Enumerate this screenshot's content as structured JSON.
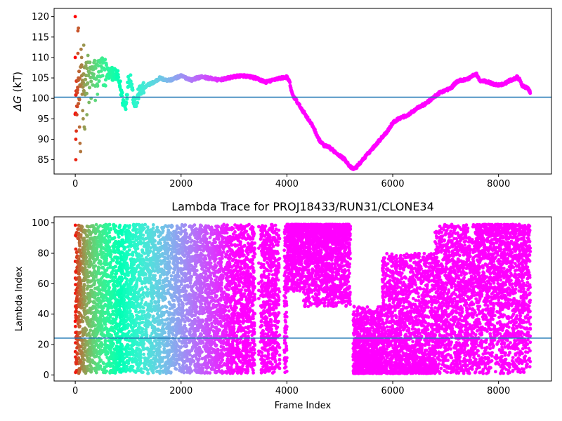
{
  "chart_data": [
    {
      "type": "scatter",
      "title": "",
      "xlabel": "",
      "ylabel_symbol": "ΔG",
      "ylabel_unit": "(kT)",
      "xlim": [
        -400,
        9000
      ],
      "ylim": [
        81.5,
        122
      ],
      "xticks": [
        0,
        2000,
        4000,
        6000,
        8000
      ],
      "yticks": [
        85,
        90,
        95,
        100,
        105,
        110,
        115,
        120
      ],
      "hline": {
        "y": 100.3,
        "color": "#1f77b4"
      },
      "colormap": "rainbow",
      "x_range": [
        0,
        8600
      ],
      "trace": [
        [
          0,
          100
        ],
        [
          100,
          104
        ],
        [
          200,
          105
        ],
        [
          300,
          105.5
        ],
        [
          400,
          106
        ],
        [
          500,
          106.5
        ],
        [
          600,
          106.3
        ],
        [
          700,
          106
        ],
        [
          800,
          105.5
        ],
        [
          850,
          103
        ],
        [
          900,
          99.5
        ],
        [
          950,
          98
        ],
        [
          1000,
          104
        ],
        [
          1050,
          105
        ],
        [
          1100,
          100
        ],
        [
          1150,
          98.5
        ],
        [
          1200,
          101.5
        ],
        [
          1300,
          102.5
        ],
        [
          1400,
          103.5
        ],
        [
          1500,
          104
        ],
        [
          1600,
          105
        ],
        [
          1700,
          104.5
        ],
        [
          1800,
          104.5
        ],
        [
          1900,
          105
        ],
        [
          2000,
          105.5
        ],
        [
          2100,
          105
        ],
        [
          2200,
          104.5
        ],
        [
          2300,
          105
        ],
        [
          2400,
          105.3
        ],
        [
          2500,
          105
        ],
        [
          2600,
          104.8
        ],
        [
          2700,
          104.5
        ],
        [
          2800,
          104.7
        ],
        [
          2900,
          105
        ],
        [
          3000,
          105.3
        ],
        [
          3100,
          105.5
        ],
        [
          3200,
          105.5
        ],
        [
          3300,
          105.3
        ],
        [
          3400,
          105
        ],
        [
          3500,
          104.5
        ],
        [
          3600,
          104
        ],
        [
          3700,
          104.3
        ],
        [
          3800,
          104.8
        ],
        [
          3900,
          105
        ],
        [
          4000,
          105.2
        ],
        [
          4050,
          104
        ],
        [
          4100,
          101
        ],
        [
          4200,
          99
        ],
        [
          4300,
          97
        ],
        [
          4400,
          95
        ],
        [
          4500,
          93
        ],
        [
          4600,
          90
        ],
        [
          4700,
          88.5
        ],
        [
          4800,
          88
        ],
        [
          4900,
          87
        ],
        [
          5000,
          86
        ],
        [
          5100,
          85
        ],
        [
          5200,
          83.2
        ],
        [
          5250,
          82.8
        ],
        [
          5300,
          83
        ],
        [
          5400,
          84.5
        ],
        [
          5500,
          86
        ],
        [
          5600,
          87.5
        ],
        [
          5700,
          89
        ],
        [
          5800,
          90.5
        ],
        [
          5900,
          92
        ],
        [
          6000,
          94
        ],
        [
          6100,
          95
        ],
        [
          6200,
          95.5
        ],
        [
          6300,
          96
        ],
        [
          6400,
          97
        ],
        [
          6500,
          98
        ],
        [
          6600,
          98.5
        ],
        [
          6700,
          99.5
        ],
        [
          6800,
          100.5
        ],
        [
          6900,
          101.5
        ],
        [
          7000,
          102
        ],
        [
          7100,
          102.5
        ],
        [
          7200,
          104
        ],
        [
          7300,
          104.5
        ],
        [
          7400,
          104.6
        ],
        [
          7500,
          105.5
        ],
        [
          7580,
          106
        ],
        [
          7650,
          104.2
        ],
        [
          7700,
          104.3
        ],
        [
          7800,
          104
        ],
        [
          7900,
          103.5
        ],
        [
          8000,
          103.3
        ],
        [
          8100,
          103.5
        ],
        [
          8200,
          104.3
        ],
        [
          8300,
          104.8
        ],
        [
          8350,
          105.2
        ],
        [
          8400,
          104.5
        ],
        [
          8450,
          103
        ],
        [
          8500,
          102.8
        ],
        [
          8550,
          102.5
        ],
        [
          8600,
          101.5
        ]
      ],
      "early_scatter": [
        [
          0,
          120
        ],
        [
          0,
          110
        ],
        [
          10,
          85
        ],
        [
          10,
          90
        ],
        [
          20,
          92
        ],
        [
          30,
          96
        ],
        [
          40,
          98
        ],
        [
          50,
          116.5
        ],
        [
          60,
          117.2
        ],
        [
          50,
          111
        ],
        [
          60,
          105
        ],
        [
          70,
          100
        ],
        [
          80,
          93
        ],
        [
          90,
          89
        ],
        [
          100,
          87
        ],
        [
          110,
          112
        ],
        [
          120,
          110
        ],
        [
          130,
          101
        ],
        [
          140,
          97
        ],
        [
          150,
          95
        ],
        [
          160,
          113
        ],
        [
          170,
          93
        ],
        [
          180,
          92.5
        ],
        [
          200,
          108
        ],
        [
          220,
          96
        ],
        [
          240,
          110.5
        ],
        [
          260,
          99
        ],
        [
          300,
          100
        ],
        [
          380,
          99.5
        ],
        [
          420,
          101
        ]
      ]
    },
    {
      "type": "scatter",
      "title": "Lambda Trace for PROJ18433/RUN31/CLONE34",
      "xlabel": "Frame Index",
      "ylabel": "Lambda Index",
      "xlim": [
        -400,
        9000
      ],
      "ylim": [
        -4,
        104
      ],
      "xticks": [
        0,
        2000,
        4000,
        6000,
        8000
      ],
      "yticks": [
        0,
        20,
        40,
        60,
        80,
        100
      ],
      "hline": {
        "y": 24.2,
        "color": "#1f77b4"
      },
      "colormap": "rainbow",
      "density_segments": [
        {
          "x0": 0,
          "x1": 4000,
          "ymin": 1,
          "ymax": 99,
          "mode": "uniform"
        },
        {
          "x0": 4000,
          "x1": 4300,
          "ymin": 55,
          "ymax": 99,
          "mode": "top"
        },
        {
          "x0": 4300,
          "x1": 5250,
          "ymin": 45,
          "ymax": 99,
          "mode": "top"
        },
        {
          "x0": 5250,
          "x1": 5800,
          "ymin": 1,
          "ymax": 45,
          "mode": "low"
        },
        {
          "x0": 5800,
          "x1": 6800,
          "ymin": 1,
          "ymax": 80,
          "mode": "low"
        },
        {
          "x0": 6800,
          "x1": 7600,
          "ymin": 1,
          "ymax": 99,
          "mode": "uniform"
        },
        {
          "x0": 7600,
          "x1": 8600,
          "ymin": 1,
          "ymax": 99,
          "mode": "high"
        }
      ],
      "gaps": [
        [
          3400,
          3500
        ],
        [
          3850,
          3950
        ],
        [
          5200,
          5250
        ]
      ]
    }
  ]
}
